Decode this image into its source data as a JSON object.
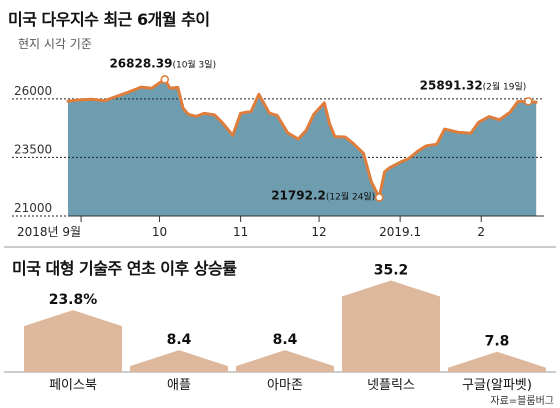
{
  "colors": {
    "area_fill": "#6e9db0",
    "line": "#de7d3c",
    "bar_fill": "#ddb89c",
    "bar_stroke": "#ffffff",
    "axis": "#333333",
    "grid": "#222222",
    "divider": "#999999"
  },
  "chart_data": [
    {
      "type": "area",
      "title": "미국 다우지수 최근 6개월 추이",
      "subtitle": "현지 시각 기준",
      "ylim": [
        21000,
        27400
      ],
      "y_ticks": [
        "26000",
        "23500",
        "21000"
      ],
      "y_tick_values": [
        26000,
        23500,
        21000
      ],
      "x_ticks": [
        "2018년 9월",
        "10",
        "11",
        "12",
        "2019.1",
        "2"
      ],
      "x_tick_dates": [
        "2018-09-01",
        "2018-10-01",
        "2018-11-01",
        "2018-12-01",
        "2019-01-01",
        "2019-02-01"
      ],
      "xlim": [
        "2018-08-27",
        "2019-02-25"
      ],
      "grid": "horizontal dashed",
      "series": [
        {
          "x": [
            "2018-08-27",
            "2018-08-31",
            "2018-09-05",
            "2018-09-10",
            "2018-09-14",
            "2018-09-19",
            "2018-09-24",
            "2018-09-28",
            "2018-10-03",
            "2018-10-05",
            "2018-10-08",
            "2018-10-10",
            "2018-10-12",
            "2018-10-15",
            "2018-10-18",
            "2018-10-22",
            "2018-10-25",
            "2018-10-29",
            "2018-11-01",
            "2018-11-05",
            "2018-11-08",
            "2018-11-12",
            "2018-11-15",
            "2018-11-19",
            "2018-11-23",
            "2018-11-26",
            "2018-11-29",
            "2018-12-03",
            "2018-12-05",
            "2018-12-07",
            "2018-12-11",
            "2018-12-14",
            "2018-12-18",
            "2018-12-21",
            "2018-12-24",
            "2018-12-26",
            "2018-12-28",
            "2019-01-02",
            "2019-01-04",
            "2019-01-08",
            "2019-01-11",
            "2019-01-15",
            "2019-01-18",
            "2019-01-23",
            "2019-01-28",
            "2019-01-31",
            "2019-02-04",
            "2019-02-08",
            "2019-02-12",
            "2019-02-15",
            "2019-02-19",
            "2019-02-22"
          ],
          "y": [
            25900,
            25950,
            25980,
            25920,
            26080,
            26280,
            26500,
            26450,
            26828.39,
            26447,
            26487,
            25598,
            25339,
            25250,
            25379,
            25317,
            24985,
            24442,
            25380,
            25461,
            26191,
            25387,
            25289,
            24550,
            24285,
            24640,
            25338,
            25826,
            24947,
            24389,
            24370,
            24100,
            23675,
            22445,
            21792.2,
            22878,
            23062,
            23346,
            23433,
            23787,
            23995,
            24065,
            24706,
            24575,
            24528,
            24999,
            25239,
            25106,
            25425,
            25883,
            25891.32,
            25850
          ]
        }
      ],
      "annotations": [
        {
          "value": "26828.39",
          "date": "(10월 3일)"
        },
        {
          "value": "21792.2",
          "date": "(12월 24일)"
        },
        {
          "value": "25891.32",
          "date": "(2월 19일)"
        }
      ]
    },
    {
      "type": "bar",
      "title": "미국 대형 기술주 연초 이후 상승률",
      "categories": [
        "페이스북",
        "애플",
        "아마존",
        "넷플릭스",
        "구글(알파벳)"
      ],
      "values": [
        23.8,
        8.4,
        8.4,
        35.2,
        7.8
      ],
      "labels": [
        "23.8%",
        "8.4",
        "8.4",
        "35.2",
        "7.8"
      ],
      "ylim": [
        0,
        40
      ]
    }
  ],
  "source": "자료=블룸버그"
}
